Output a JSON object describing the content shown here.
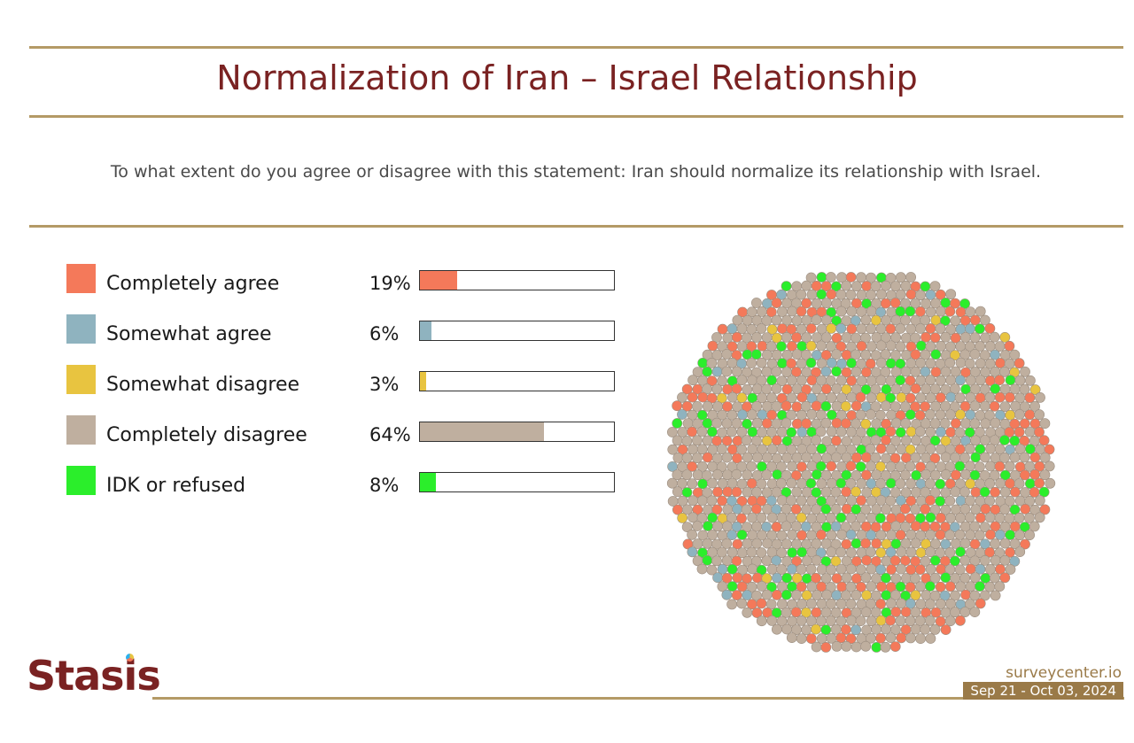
{
  "title": "Normalization of Iran – Israel Relationship",
  "question": "To what extent do you agree or disagree with this statement: Iran should normalize its relationship with Israel.",
  "chart_data": {
    "type": "bar",
    "categories": [
      "Completely agree",
      "Somewhat agree",
      "Somewhat disagree",
      "Completely disagree",
      "IDK or refused"
    ],
    "values": [
      19,
      6,
      3,
      64,
      8
    ],
    "value_labels": [
      "19%",
      "6%",
      "3%",
      "64%",
      "8%"
    ],
    "colors": [
      "#f4795a",
      "#8fb3bf",
      "#e8c440",
      "#bfaf9f",
      "#2bee2b"
    ],
    "ylim": [
      0,
      100
    ],
    "legend_position": "left",
    "companion_chart": "dot-cloud of respondents colored by response, proportions matching the values"
  },
  "logo": {
    "text_start": "Stas",
    "text_i": "i",
    "text_end": "s"
  },
  "footer": {
    "site": "surveycenter.io",
    "dates": "Sep 21 - Oct 03, 2024"
  },
  "colors": {
    "rule": "#b49a66",
    "title": "#7a2222",
    "footer_accent": "#9a7a48"
  }
}
